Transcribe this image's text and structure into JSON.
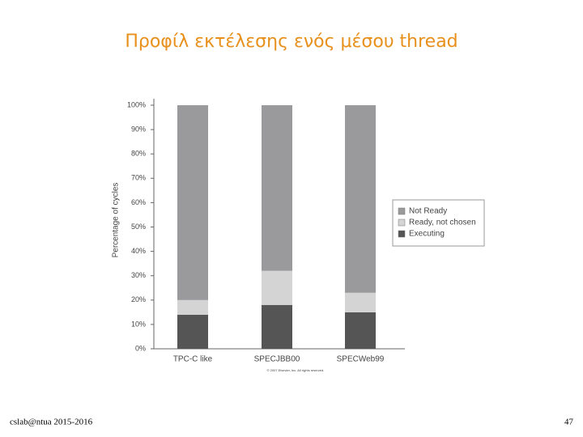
{
  "slide": {
    "title": "Προφίλ εκτέλεσης ενός μέσου thread",
    "footer": "cslab@ntua 2015-2016",
    "page_number": "47"
  },
  "chart_data": {
    "type": "stacked_bar",
    "y_label": "Percentage of cycles",
    "note": "© 2007 Elsevier, Inc. All rights reserved.",
    "categories": [
      "TPC-C like",
      "SPECJBB00",
      "SPECWeb99"
    ],
    "series": [
      {
        "name": "Executing",
        "color": "#555555",
        "values": [
          14,
          18,
          15
        ]
      },
      {
        "name": "Ready, not chosen",
        "color": "#d4d4d4",
        "values": [
          6,
          14,
          8
        ]
      },
      {
        "name": "Not Ready",
        "color": "#9a9a9c",
        "values": [
          80,
          68,
          77
        ]
      }
    ],
    "ylim": [
      0,
      100
    ],
    "yticks": [
      {
        "value": 0,
        "label": "0%"
      },
      {
        "value": 10,
        "label": "10%"
      },
      {
        "value": 20,
        "label": "20%"
      },
      {
        "value": 30,
        "label": "30%"
      },
      {
        "value": 40,
        "label": "40%"
      },
      {
        "value": 50,
        "label": "50%"
      },
      {
        "value": 60,
        "label": "60%"
      },
      {
        "value": 70,
        "label": "70%"
      },
      {
        "value": 80,
        "label": "80%"
      },
      {
        "value": 90,
        "label": "90%"
      },
      {
        "value": 100,
        "label": "100%"
      }
    ],
    "grid": false
  }
}
